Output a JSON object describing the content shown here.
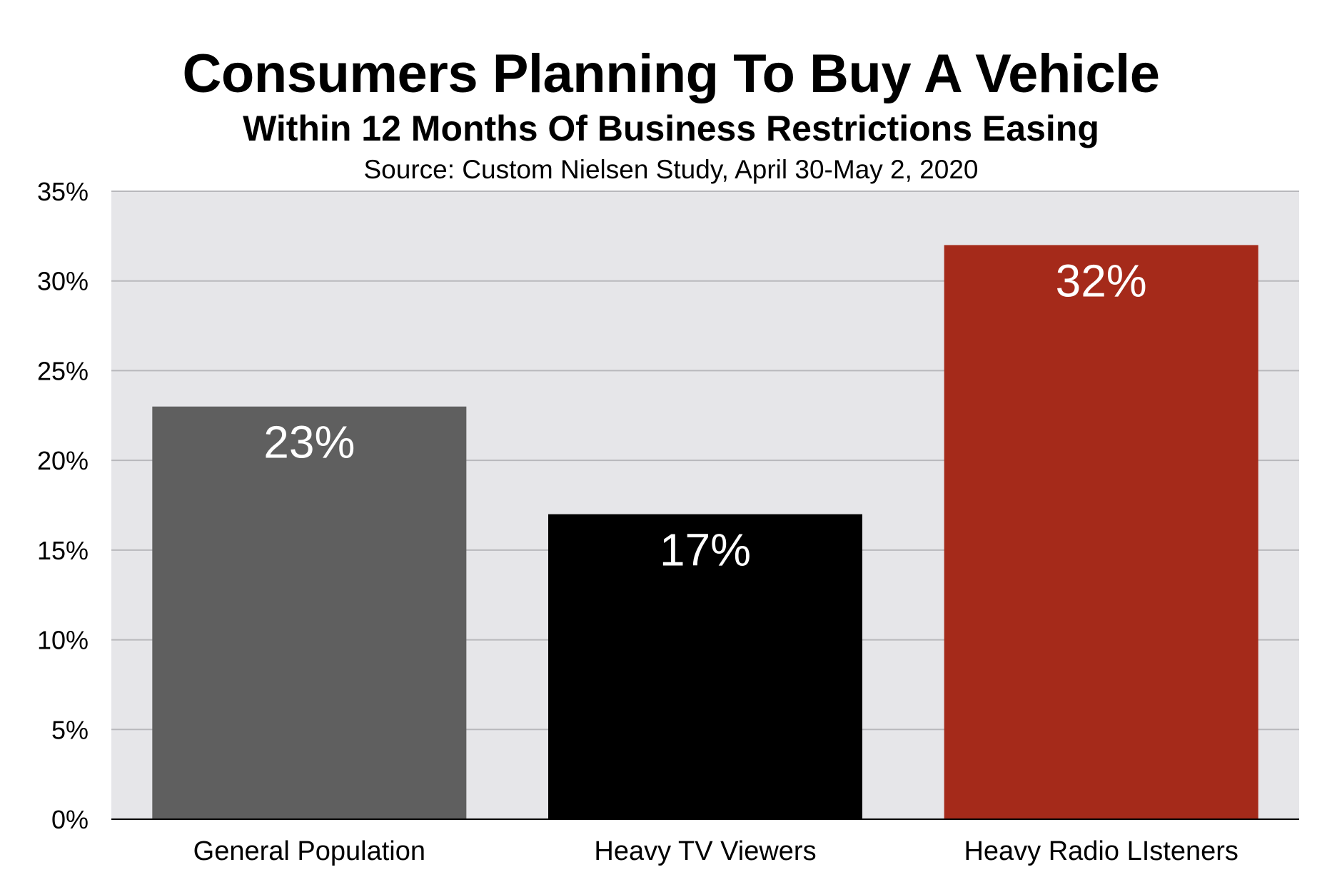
{
  "chart_data": {
    "type": "bar",
    "title": "Consumers Planning To Buy A Vehicle",
    "subtitle": "Within 12 Months Of Business Restrictions Easing",
    "source": "Source: Custom Nielsen Study, April 30-May 2, 2020",
    "categories": [
      "General Population",
      "Heavy TV Viewers",
      "Heavy Radio LIsteners"
    ],
    "values": [
      23,
      17,
      32
    ],
    "data_labels": [
      "23%",
      "17%",
      "32%"
    ],
    "bar_colors": [
      "#5f5f5f",
      "#000000",
      "#a52a1a"
    ],
    "ylim": [
      0,
      35
    ],
    "yticks": [
      0,
      5,
      10,
      15,
      20,
      25,
      30,
      35
    ],
    "ytick_labels": [
      "0%",
      "5%",
      "10%",
      "15%",
      "20%",
      "25%",
      "30%",
      "35%"
    ],
    "xlabel": "",
    "ylabel": "",
    "grid": true,
    "legend": false,
    "plot_background": "#e6e6e9",
    "grid_color": "#b8b8bc"
  }
}
